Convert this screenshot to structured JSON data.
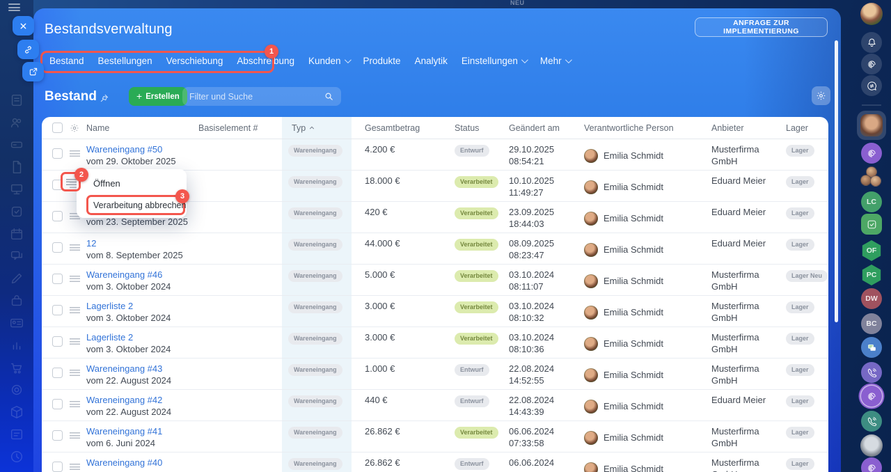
{
  "window": {
    "neu_label": "NEU"
  },
  "header": {
    "title": "Bestandsverwaltung",
    "cta_label": "ANFRAGE ZUR IMPLEMENTIERUNG"
  },
  "nav": {
    "boxed_items": [
      {
        "label": "Bestand"
      },
      {
        "label": "Bestellungen"
      },
      {
        "label": "Verschiebung"
      },
      {
        "label": "Abschreibung"
      }
    ],
    "items": [
      {
        "label": "Kunden",
        "dropdown": true
      },
      {
        "label": "Produkte",
        "dropdown": false
      },
      {
        "label": "Analytik",
        "dropdown": false
      },
      {
        "label": "Einstellungen",
        "dropdown": true
      },
      {
        "label": "Mehr",
        "dropdown": true
      }
    ]
  },
  "annotations": {
    "step1": "1",
    "step2": "2",
    "step3": "3"
  },
  "toolbar": {
    "page_title": "Bestand",
    "create_label": "Erstellen",
    "create_plus": "+",
    "search_placeholder": "Filter und Suche"
  },
  "table": {
    "columns": [
      "Name",
      "Basiselement #",
      "Typ",
      "Gesamtbetrag",
      "Status",
      "Geändert am",
      "Verantwortliche Person",
      "Anbieter",
      "Lager"
    ],
    "sort_column": "Typ",
    "rows": [
      {
        "name": "Wareneingang #50",
        "sub": "vom 29. Oktober 2025",
        "typ": "Wareneingang",
        "amount": "4.200 €",
        "status": "Entwurf",
        "status_kind": "draft",
        "date": "29.10.2025",
        "time": "08:54:21",
        "person": "Emilia Schmidt",
        "anbieter": "Musterfirma GmbH",
        "lager": "Lager"
      },
      {
        "name": "",
        "sub": "",
        "typ": "Wareneingang",
        "amount": "18.000 €",
        "status": "Verarbeitet",
        "status_kind": "processed",
        "date": "10.10.2025 11:49:27",
        "time": "",
        "person": "Emilia Schmidt",
        "anbieter": "Eduard Meier",
        "lager": "Lager"
      },
      {
        "name": "",
        "sub": "vom 23. September 2025",
        "typ": "Wareneingang",
        "amount": "420 €",
        "status": "Verarbeitet",
        "status_kind": "processed",
        "date": "23.09.2025",
        "time": "18:44:03",
        "person": "Emilia Schmidt",
        "anbieter": "Eduard Meier",
        "lager": "Lager"
      },
      {
        "name": "12",
        "sub": "vom 8. September 2025",
        "typ": "Wareneingang",
        "amount": "44.000 €",
        "status": "Verarbeitet",
        "status_kind": "processed",
        "date": "08.09.2025",
        "time": "08:23:47",
        "person": "Emilia Schmidt",
        "anbieter": "Eduard Meier",
        "lager": "Lager"
      },
      {
        "name": "Wareneingang #46",
        "sub": "vom 3. Oktober 2024",
        "typ": "Wareneingang",
        "amount": "5.000 €",
        "status": "Verarbeitet",
        "status_kind": "processed",
        "date": "03.10.2024",
        "time": "08:11:07",
        "person": "Emilia Schmidt",
        "anbieter": "Musterfirma GmbH",
        "lager": "Lager Neu"
      },
      {
        "name": "Lagerliste 2",
        "sub": "vom 3. Oktober 2024",
        "typ": "Wareneingang",
        "amount": "3.000 €",
        "status": "Verarbeitet",
        "status_kind": "processed",
        "date": "03.10.2024",
        "time": "08:10:32",
        "person": "Emilia Schmidt",
        "anbieter": "Musterfirma GmbH",
        "lager": "Lager"
      },
      {
        "name": "Lagerliste 2",
        "sub": "vom 3. Oktober 2024",
        "typ": "Wareneingang",
        "amount": "3.000 €",
        "status": "Verarbeitet",
        "status_kind": "processed",
        "date": "03.10.2024",
        "time": "08:10:36",
        "person": "Emilia Schmidt",
        "anbieter": "Musterfirma GmbH",
        "lager": "Lager"
      },
      {
        "name": "Wareneingang #43",
        "sub": "vom 22. August 2024",
        "typ": "Wareneingang",
        "amount": "1.000 €",
        "status": "Entwurf",
        "status_kind": "draft",
        "date": "22.08.2024",
        "time": "14:52:55",
        "person": "Emilia Schmidt",
        "anbieter": "Musterfirma GmbH",
        "lager": "Lager"
      },
      {
        "name": "Wareneingang #42",
        "sub": "vom 22. August 2024",
        "typ": "Wareneingang",
        "amount": "440 €",
        "status": "Entwurf",
        "status_kind": "draft",
        "date": "22.08.2024",
        "time": "14:43:39",
        "person": "Emilia Schmidt",
        "anbieter": "Eduard Meier",
        "lager": "Lager"
      },
      {
        "name": "Wareneingang #41",
        "sub": "vom 6. Juni 2024",
        "typ": "Wareneingang",
        "amount": "26.862 €",
        "status": "Verarbeitet",
        "status_kind": "processed",
        "date": "06.06.2024",
        "time": "07:33:58",
        "person": "Emilia Schmidt",
        "anbieter": "Musterfirma GmbH",
        "lager": "Lager"
      },
      {
        "name": "Wareneingang #40",
        "sub": "",
        "typ": "Wareneingang",
        "amount": "26.862 €",
        "status": "Entwurf",
        "status_kind": "draft",
        "date": "06.06.2024",
        "time": "",
        "person": "Emilia Schmidt",
        "anbieter": "Musterfirma GmbH",
        "lager": "Lager"
      }
    ]
  },
  "context_menu": {
    "items": [
      "Öffnen",
      "Verarbeitung abbrechen"
    ]
  },
  "left_rail": {
    "icons": [
      "document-icon",
      "users-icon",
      "drive-icon",
      "file-icon",
      "board-icon",
      "check-square-icon",
      "calendar-icon",
      "chat-icon",
      "pen-icon",
      "bag-icon",
      "id-card-icon",
      "bar-chart-icon",
      "cart-icon",
      "target-icon",
      "box-icon",
      "list-edit-icon",
      "clock-icon"
    ]
  },
  "right_rail": {
    "items": [
      {
        "type": "avatar",
        "name": "user-avatar",
        "palette": "woman"
      },
      {
        "type": "icon",
        "name": "bell-icon",
        "icon": "bell",
        "bg": "rgba(255,255,255,0.14)"
      },
      {
        "type": "icon",
        "name": "spiral-icon",
        "icon": "spiral",
        "bg": "rgba(255,255,255,0.14)"
      },
      {
        "type": "icon",
        "name": "chat-sync-icon",
        "icon": "chatsync",
        "bg": "rgba(255,255,255,0.14)"
      },
      {
        "type": "divider"
      },
      {
        "type": "avatar",
        "name": "contact-avatar",
        "palette": "man",
        "highlighted": true
      },
      {
        "type": "icon",
        "name": "spiral-icon",
        "icon": "spiral",
        "bg": "#8a5fd0"
      },
      {
        "type": "group",
        "name": "avatar-group"
      },
      {
        "type": "initials",
        "label": "LC",
        "bg": "#43a06a",
        "shape": "circle"
      },
      {
        "type": "icon",
        "name": "check-square-icon",
        "icon": "checksq",
        "bg": "#4da765",
        "shape": "rounded"
      },
      {
        "type": "initials",
        "label": "OF",
        "bg": "#2f9e5f",
        "shape": "hex"
      },
      {
        "type": "initials",
        "label": "PC",
        "bg": "#2f9e5f",
        "shape": "hex"
      },
      {
        "type": "initials",
        "label": "DW",
        "bg": "#a0525f",
        "shape": "circle"
      },
      {
        "type": "initials",
        "label": "BC",
        "bg": "#80829b",
        "shape": "circle"
      },
      {
        "type": "icon",
        "name": "chat-icon",
        "icon": "chat",
        "bg": "#4b80ca"
      },
      {
        "type": "icon",
        "name": "phone-icon",
        "icon": "phone",
        "bg": "#7668c5"
      },
      {
        "type": "icon",
        "name": "spiral-icon",
        "icon": "spiral",
        "bg": "#8a5fd0",
        "ring": true
      },
      {
        "type": "icon",
        "name": "phone-icon",
        "icon": "phone",
        "bg": "#3d8d82"
      },
      {
        "type": "avatar",
        "name": "pet-avatar",
        "palette": "cat"
      },
      {
        "type": "icon",
        "name": "spiral-icon",
        "icon": "spiral",
        "bg": "#8a5fd0"
      }
    ]
  },
  "colors": {
    "annotation_red": "#f3564d",
    "primary_blue": "#2f7ee9",
    "create_green": "#2aab55",
    "status_processed_bg": "#dcebae",
    "status_processed_text": "#76893f",
    "status_draft_bg": "#e8eaee",
    "status_draft_text": "#8a919d",
    "link_blue": "#3273d8",
    "typ_band": "#ecf5fa"
  }
}
